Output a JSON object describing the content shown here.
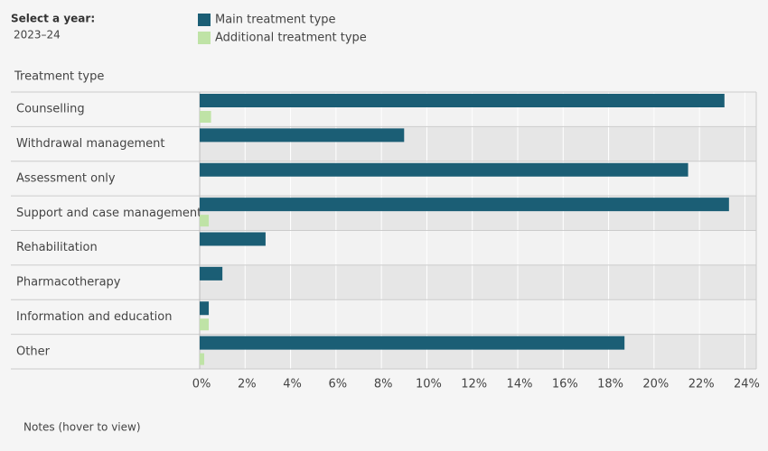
{
  "controls": {
    "year_label": "Select a year:",
    "year_value": "2023–24",
    "notes": "Notes (hover to view)"
  },
  "chart_data": {
    "type": "bar",
    "orientation": "horizontal",
    "category_axis_title": "Treatment type",
    "categories": [
      "Counselling",
      "Withdrawal management",
      "Assessment only",
      "Support and case management",
      "Rehabilitation",
      "Pharmacotherapy",
      "Information and education",
      "Other"
    ],
    "series": [
      {
        "name": "Main treatment type",
        "color": "#1b5e75",
        "values": [
          23.1,
          9.0,
          21.5,
          23.3,
          2.9,
          1.0,
          0.4,
          18.7
        ]
      },
      {
        "name": "Additional treatment type",
        "color": "#bfe3a6",
        "values": [
          0.5,
          0,
          0,
          0.4,
          0,
          0,
          0.4,
          0.2
        ]
      }
    ],
    "xlim": [
      0,
      24.5
    ],
    "xticks": [
      {
        "value": 0,
        "label": "0%"
      },
      {
        "value": 2,
        "label": "2%"
      },
      {
        "value": 4,
        "label": "4%"
      },
      {
        "value": 6,
        "label": "6%"
      },
      {
        "value": 8,
        "label": "8%"
      },
      {
        "value": 10,
        "label": "10%"
      },
      {
        "value": 12,
        "label": "12%"
      },
      {
        "value": 14,
        "label": "14%"
      },
      {
        "value": 16,
        "label": "16%"
      },
      {
        "value": 18,
        "label": "18%"
      },
      {
        "value": 20,
        "label": "20%"
      },
      {
        "value": 22,
        "label": "22%"
      },
      {
        "value": 24,
        "label": "24%"
      }
    ],
    "grid": true
  }
}
